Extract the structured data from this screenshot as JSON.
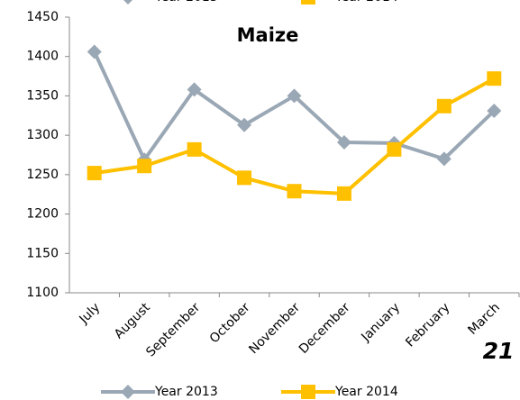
{
  "chart_data": {
    "type": "line",
    "title": "Maize",
    "categories": [
      "July",
      "August",
      "September",
      "October",
      "November",
      "December",
      "January",
      "February",
      "March"
    ],
    "series": [
      {
        "name": "Year 2013",
        "color": "#9aa7b5",
        "marker": "diamond",
        "values": [
          1406,
          1269,
          1358,
          1313,
          1350,
          1291,
          1290,
          1270,
          1331
        ]
      },
      {
        "name": "Year 2014",
        "color": "#ffc000",
        "marker": "square",
        "values": [
          1252,
          1261,
          1282,
          1246,
          1229,
          1226,
          1282,
          1337,
          1372
        ]
      }
    ],
    "ylim": [
      1100,
      1450
    ],
    "yticks": [
      1100,
      1150,
      1200,
      1250,
      1300,
      1350,
      1400,
      1450
    ],
    "legend": "bottom",
    "page_number": "21"
  }
}
